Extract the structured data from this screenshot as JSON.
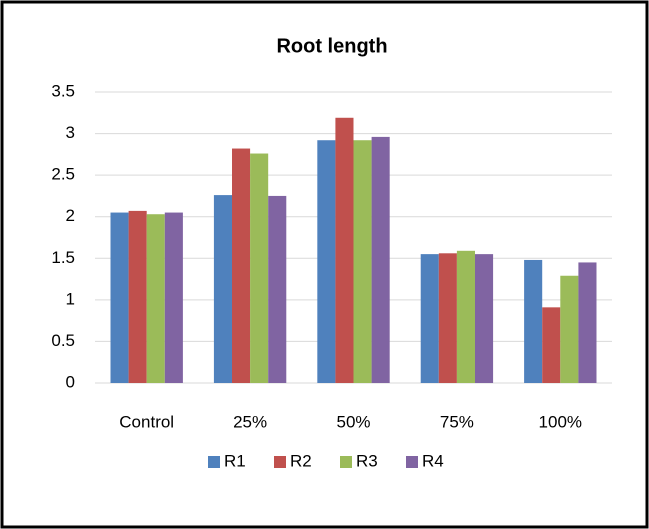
{
  "chart_data": {
    "type": "bar",
    "title": "Root length",
    "categories": [
      "Control",
      "25%",
      "50%",
      "75%",
      "100%"
    ],
    "series": [
      {
        "name": "R1",
        "color": "#4f81bd",
        "values": [
          2.05,
          2.26,
          2.92,
          1.55,
          1.48
        ]
      },
      {
        "name": "R2",
        "color": "#c0504d",
        "values": [
          2.07,
          2.82,
          3.19,
          1.56,
          0.91
        ]
      },
      {
        "name": "R3",
        "color": "#9bbb59",
        "values": [
          2.03,
          2.76,
          2.92,
          1.59,
          1.29
        ]
      },
      {
        "name": "R4",
        "color": "#8064a2",
        "values": [
          2.05,
          2.25,
          2.96,
          1.55,
          1.45
        ]
      }
    ],
    "ylim": [
      0,
      3.5
    ],
    "yticks": [
      0,
      0.5,
      1,
      1.5,
      2,
      2.5,
      3,
      3.5
    ],
    "grid": true,
    "legend": "bottom"
  }
}
